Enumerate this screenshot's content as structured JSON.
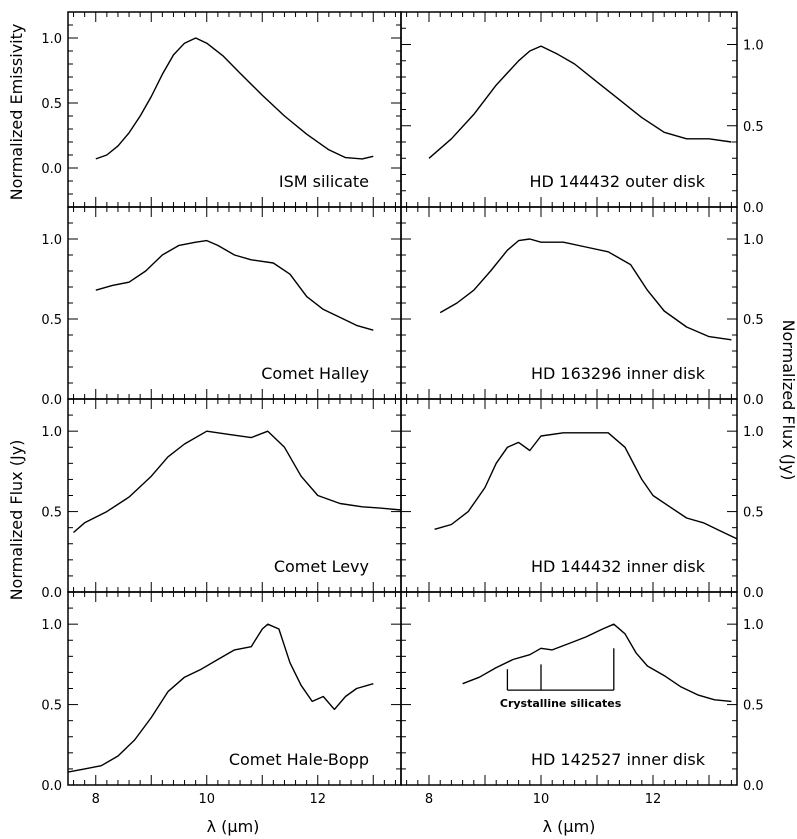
{
  "figure": {
    "xlabel": "λ (μm)",
    "ylabel_top_left": "Normalized Emissivity",
    "ylabel_left": "Normalized Flux (Jy)",
    "ylabel_right": "Normalized Flux (Jy)"
  },
  "chart_data": [
    {
      "type": "line",
      "title": "ISM silicate",
      "xlim": [
        7.5,
        13.5
      ],
      "ylim": [
        -0.3,
        1.2
      ],
      "xticks": [],
      "yticks": [
        "0.0",
        "0.5",
        "1.0"
      ],
      "series": [
        {
          "x": [
            8.0,
            8.2,
            8.4,
            8.6,
            8.8,
            9.0,
            9.2,
            9.4,
            9.6,
            9.8,
            10.0,
            10.3,
            10.6,
            11.0,
            11.4,
            11.8,
            12.2,
            12.5,
            12.8,
            13.0
          ],
          "y": [
            0.07,
            0.1,
            0.17,
            0.27,
            0.4,
            0.55,
            0.72,
            0.87,
            0.96,
            1.0,
            0.96,
            0.86,
            0.73,
            0.56,
            0.4,
            0.26,
            0.14,
            0.08,
            0.07,
            0.09
          ]
        }
      ]
    },
    {
      "type": "line",
      "title": "HD 144432 outer disk",
      "xlim": [
        7.5,
        13.5
      ],
      "ylim": [
        0.0,
        1.2
      ],
      "xticks": [],
      "yticks": [
        "0.0",
        "0.5",
        "1.0"
      ],
      "series": [
        {
          "x": [
            8.0,
            8.4,
            8.8,
            9.2,
            9.6,
            9.8,
            10.0,
            10.3,
            10.6,
            11.0,
            11.4,
            11.8,
            12.2,
            12.6,
            13.0,
            13.4
          ],
          "y": [
            0.3,
            0.42,
            0.57,
            0.75,
            0.9,
            0.96,
            0.99,
            0.94,
            0.88,
            0.77,
            0.66,
            0.55,
            0.46,
            0.42,
            0.42,
            0.4
          ]
        }
      ]
    },
    {
      "type": "line",
      "title": "Comet Halley",
      "xlim": [
        7.5,
        13.5
      ],
      "ylim": [
        0.0,
        1.2
      ],
      "xticks": [],
      "yticks": [
        "0.0",
        "0.5",
        "1.0"
      ],
      "series": [
        {
          "x": [
            8.0,
            8.3,
            8.6,
            8.9,
            9.2,
            9.5,
            9.8,
            10.0,
            10.2,
            10.5,
            10.8,
            11.2,
            11.5,
            11.8,
            12.1,
            12.4,
            12.7,
            13.0
          ],
          "y": [
            0.68,
            0.71,
            0.73,
            0.8,
            0.9,
            0.96,
            0.98,
            0.99,
            0.96,
            0.9,
            0.87,
            0.85,
            0.78,
            0.64,
            0.56,
            0.51,
            0.46,
            0.43
          ]
        }
      ]
    },
    {
      "type": "line",
      "title": "HD 163296 inner disk",
      "xlim": [
        7.5,
        13.5
      ],
      "ylim": [
        0.0,
        1.2
      ],
      "xticks": [],
      "yticks": [
        "0.0",
        "0.5",
        "1.0"
      ],
      "series": [
        {
          "x": [
            8.2,
            8.5,
            8.8,
            9.1,
            9.4,
            9.6,
            9.8,
            10.0,
            10.4,
            10.8,
            11.2,
            11.6,
            11.9,
            12.2,
            12.6,
            13.0,
            13.4
          ],
          "y": [
            0.54,
            0.6,
            0.68,
            0.8,
            0.93,
            0.99,
            1.0,
            0.98,
            0.98,
            0.95,
            0.92,
            0.84,
            0.68,
            0.55,
            0.45,
            0.39,
            0.37
          ]
        }
      ]
    },
    {
      "type": "line",
      "title": "Comet Levy",
      "xlim": [
        7.5,
        13.5
      ],
      "ylim": [
        0.0,
        1.2
      ],
      "xticks": [],
      "yticks": [
        "0.0",
        "0.5",
        "1.0"
      ],
      "series": [
        {
          "x": [
            7.6,
            7.8,
            8.2,
            8.6,
            9.0,
            9.3,
            9.6,
            10.0,
            10.4,
            10.8,
            11.1,
            11.4,
            11.7,
            12.0,
            12.4,
            12.8,
            13.2,
            13.5
          ],
          "y": [
            0.37,
            0.43,
            0.5,
            0.59,
            0.72,
            0.84,
            0.92,
            1.0,
            0.98,
            0.96,
            1.0,
            0.9,
            0.72,
            0.6,
            0.55,
            0.53,
            0.52,
            0.51
          ]
        }
      ]
    },
    {
      "type": "line",
      "title": "HD 144432 inner disk",
      "xlim": [
        7.5,
        13.5
      ],
      "ylim": [
        0.0,
        1.2
      ],
      "xticks": [],
      "yticks": [
        "0.0",
        "0.5",
        "1.0"
      ],
      "series": [
        {
          "x": [
            8.1,
            8.4,
            8.7,
            9.0,
            9.2,
            9.4,
            9.6,
            9.8,
            10.0,
            10.4,
            10.8,
            11.2,
            11.5,
            11.8,
            12.0,
            12.3,
            12.6,
            12.9,
            13.2,
            13.5
          ],
          "y": [
            0.39,
            0.42,
            0.5,
            0.65,
            0.8,
            0.9,
            0.93,
            0.88,
            0.97,
            0.99,
            0.99,
            0.99,
            0.9,
            0.7,
            0.6,
            0.53,
            0.46,
            0.43,
            0.38,
            0.33
          ]
        }
      ]
    },
    {
      "type": "line",
      "title": "Comet Hale-Bopp",
      "xlim": [
        7.5,
        13.5
      ],
      "ylim": [
        0.0,
        1.2
      ],
      "xticks": [
        "8",
        "10",
        "12"
      ],
      "yticks": [
        "0.0",
        "0.5",
        "1.0"
      ],
      "series": [
        {
          "x": [
            7.5,
            7.8,
            8.1,
            8.4,
            8.7,
            9.0,
            9.3,
            9.6,
            9.9,
            10.2,
            10.5,
            10.8,
            11.0,
            11.1,
            11.3,
            11.5,
            11.7,
            11.9,
            12.1,
            12.3,
            12.5,
            12.7,
            13.0
          ],
          "y": [
            0.08,
            0.1,
            0.12,
            0.18,
            0.28,
            0.42,
            0.58,
            0.67,
            0.72,
            0.78,
            0.84,
            0.86,
            0.97,
            1.0,
            0.97,
            0.76,
            0.62,
            0.52,
            0.55,
            0.47,
            0.55,
            0.6,
            0.63
          ]
        }
      ]
    },
    {
      "type": "line",
      "title": "HD 142527 inner disk",
      "xlim": [
        7.5,
        13.5
      ],
      "ylim": [
        0.0,
        1.2
      ],
      "xticks": [
        "8",
        "10",
        "12"
      ],
      "yticks": [
        "0.0",
        "0.5",
        "1.0"
      ],
      "annotation": "Crystalline silicates",
      "annotation_lines_x": [
        9.4,
        10.0,
        11.3
      ],
      "series": [
        {
          "x": [
            8.6,
            8.9,
            9.2,
            9.5,
            9.8,
            10.0,
            10.2,
            10.5,
            10.8,
            11.1,
            11.3,
            11.5,
            11.7,
            11.9,
            12.2,
            12.5,
            12.8,
            13.1,
            13.4
          ],
          "y": [
            0.63,
            0.67,
            0.73,
            0.78,
            0.81,
            0.85,
            0.84,
            0.88,
            0.92,
            0.97,
            1.0,
            0.94,
            0.82,
            0.74,
            0.68,
            0.61,
            0.56,
            0.53,
            0.52
          ]
        }
      ]
    }
  ]
}
